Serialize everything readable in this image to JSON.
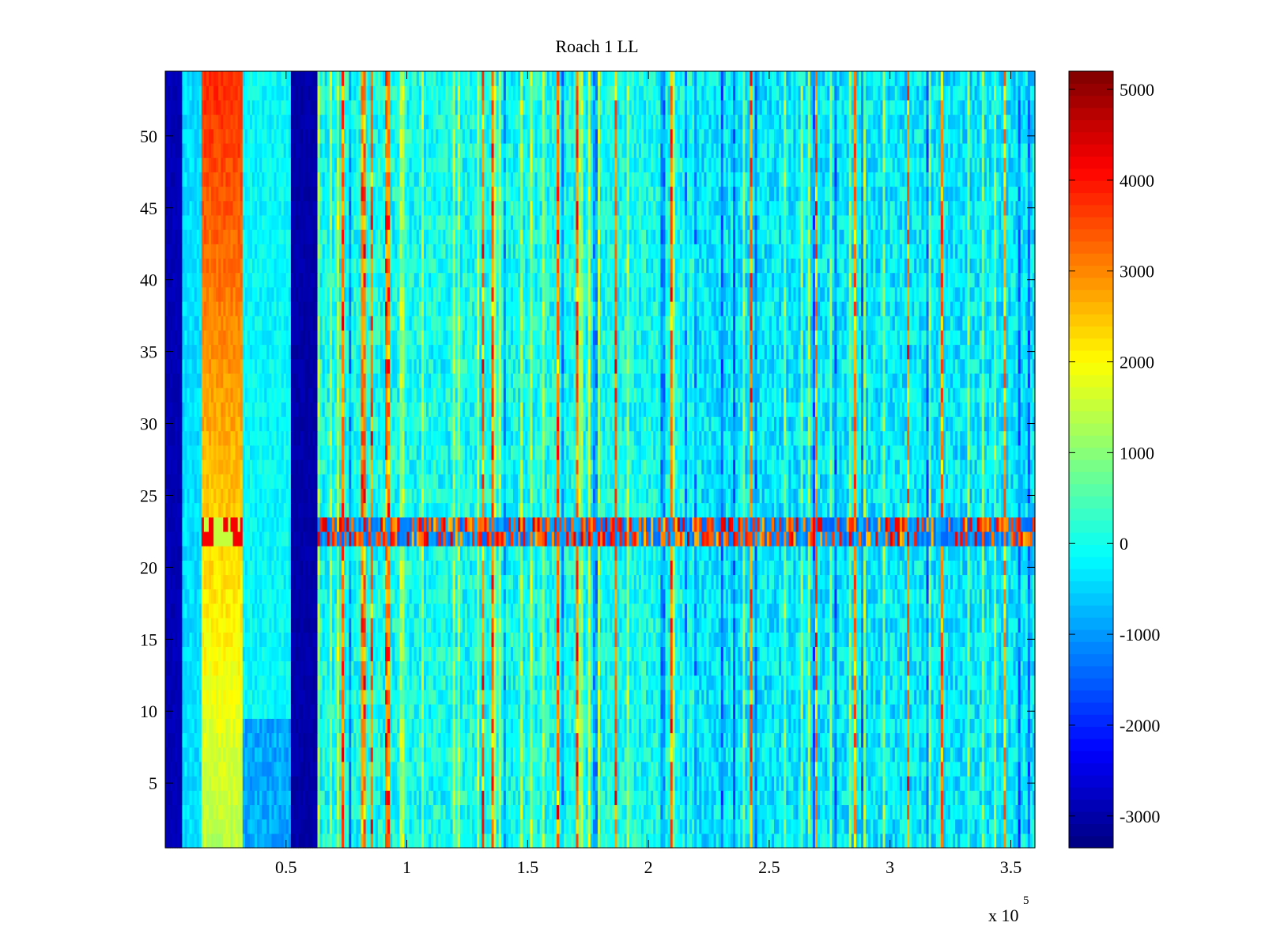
{
  "chart_data": {
    "type": "heatmap",
    "title": "Roach 1 LL",
    "xlabel": "",
    "ylabel": "",
    "x_exponent_label": "x 10",
    "x_exponent_power": "5",
    "xlim": [
      0,
      3.6
    ],
    "ylim": [
      0.5,
      54.5
    ],
    "x_ticks": [
      {
        "value": 0.5,
        "label": "0.5"
      },
      {
        "value": 1,
        "label": "1"
      },
      {
        "value": 1.5,
        "label": "1.5"
      },
      {
        "value": 2,
        "label": "2"
      },
      {
        "value": 2.5,
        "label": "2.5"
      },
      {
        "value": 3,
        "label": "3"
      },
      {
        "value": 3.5,
        "label": "3.5"
      }
    ],
    "y_ticks": [
      {
        "value": 5,
        "label": "5"
      },
      {
        "value": 10,
        "label": "10"
      },
      {
        "value": 15,
        "label": "15"
      },
      {
        "value": 20,
        "label": "20"
      },
      {
        "value": 25,
        "label": "25"
      },
      {
        "value": 30,
        "label": "30"
      },
      {
        "value": 35,
        "label": "35"
      },
      {
        "value": 40,
        "label": "40"
      },
      {
        "value": 45,
        "label": "45"
      },
      {
        "value": 50,
        "label": "50"
      }
    ],
    "colorbar": {
      "colormap": "jet",
      "range": [
        -3350,
        5200
      ],
      "ticks": [
        {
          "value": 5000,
          "label": "5000"
        },
        {
          "value": 4000,
          "label": "4000"
        },
        {
          "value": 3000,
          "label": "3000"
        },
        {
          "value": 2000,
          "label": "2000"
        },
        {
          "value": 1000,
          "label": "1000"
        },
        {
          "value": 0,
          "label": "0"
        },
        {
          "value": -1000,
          "label": "-1000"
        },
        {
          "value": -2000,
          "label": "-2000"
        },
        {
          "value": -3000,
          "label": "-3000"
        }
      ]
    },
    "rows": 54,
    "bands": [
      {
        "x_start": 0,
        "x_end": 0.07,
        "value": -3000
      },
      {
        "x_start": 0.07,
        "x_end": 0.15,
        "value": -600
      },
      {
        "x_start": 0.15,
        "x_end": 0.32,
        "value_by_row": "gradient 1500 (low rows) to 3800 (high rows)"
      },
      {
        "x_start": 0.32,
        "x_end": 0.52,
        "value": -200
      },
      {
        "x_start": 0.52,
        "x_end": 0.63,
        "value": -3200
      },
      {
        "x_start": 0.63,
        "x_end": 3.6,
        "value": 0
      }
    ],
    "highlight_rows": {
      "rows": [
        22,
        23
      ],
      "note": "alternating high/low"
    },
    "grid": false,
    "legend": "none"
  }
}
